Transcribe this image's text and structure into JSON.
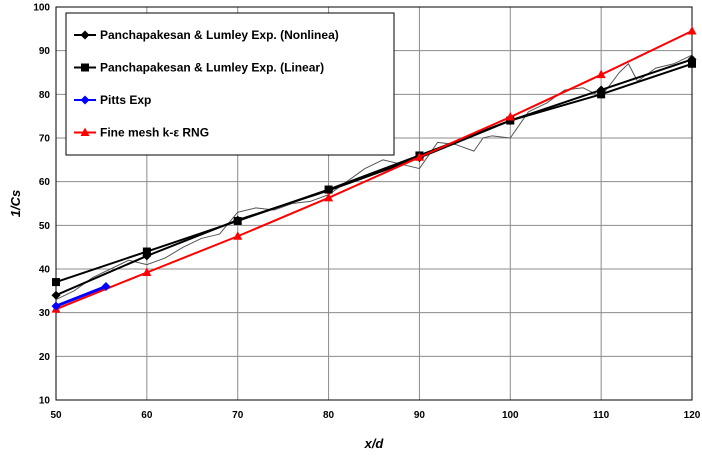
{
  "chart_data": {
    "type": "line",
    "xlabel": "x/d",
    "ylabel": "1/Cs",
    "xlim": [
      50,
      120
    ],
    "ylim": [
      10,
      100
    ],
    "x_ticks": [
      "50",
      "60",
      "70",
      "80",
      "90",
      "100",
      "110",
      "120"
    ],
    "y_ticks": [
      "10",
      "20",
      "30",
      "40",
      "50",
      "60",
      "70",
      "80",
      "90",
      "100"
    ],
    "grid": true,
    "legend_position": "top-left",
    "series": [
      {
        "name": "Panchapakesan & Lumley Exp. (Nonlinea)",
        "color": "#000000",
        "marker": "diamond",
        "x": [
          50,
          60,
          70,
          80,
          90,
          100,
          110,
          120
        ],
        "y": [
          34.0,
          43.0,
          51.2,
          58.0,
          65.5,
          74.0,
          81.0,
          88.0
        ]
      },
      {
        "name": "Panchapakesan & Lumley Exp. (Linear)",
        "color": "#000000",
        "marker": "square",
        "x": [
          50,
          60,
          70,
          80,
          90,
          100,
          110,
          120
        ],
        "y": [
          37.0,
          44.0,
          51.0,
          58.2,
          66.0,
          74.0,
          80.0,
          87.0
        ]
      },
      {
        "name": "Pitts Exp",
        "color": "#0000ff",
        "marker": "diamond",
        "x": [
          50,
          55.5
        ],
        "y": [
          31.5,
          36.0
        ]
      },
      {
        "name": "Fine mesh k-ε RNG",
        "color": "#ff0000",
        "marker": "triangle",
        "x": [
          50,
          60,
          70,
          80,
          90,
          100,
          110,
          120
        ],
        "y": [
          30.8,
          39.2,
          47.5,
          56.3,
          65.6,
          74.8,
          84.5,
          94.5
        ]
      },
      {
        "color": "#555555",
        "marker": "none",
        "x": [
          50,
          52,
          54,
          56,
          58,
          60,
          62,
          64,
          66,
          68,
          70,
          72,
          74,
          76,
          78,
          80,
          82,
          84,
          86,
          88,
          90,
          92,
          94,
          96,
          97,
          98,
          100,
          102,
          104,
          106,
          108,
          110,
          112,
          113,
          114,
          116,
          118,
          120
        ],
        "y": [
          33.0,
          35.0,
          38.0,
          40.0,
          42.0,
          41.0,
          42.5,
          45.0,
          47.0,
          48.0,
          53.0,
          54.0,
          53.5,
          55.0,
          55.5,
          57.0,
          60.0,
          63.0,
          65.0,
          64.0,
          63.0,
          69.0,
          68.5,
          67.0,
          70.0,
          70.5,
          70.0,
          76.0,
          78.0,
          81.0,
          81.5,
          79.5,
          85.0,
          87.0,
          83.0,
          86.0,
          87.0,
          89.0
        ]
      }
    ]
  }
}
